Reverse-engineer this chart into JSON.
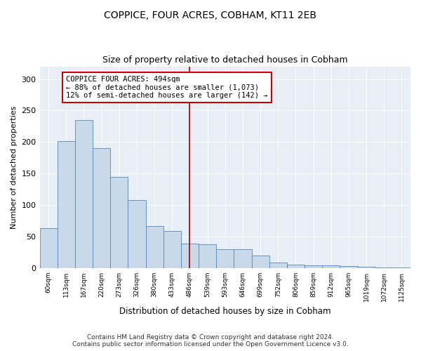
{
  "title": "COPPICE, FOUR ACRES, COBHAM, KT11 2EB",
  "subtitle": "Size of property relative to detached houses in Cobham",
  "xlabel": "Distribution of detached houses by size in Cobham",
  "ylabel": "Number of detached properties",
  "categories": [
    "60sqm",
    "113sqm",
    "167sqm",
    "220sqm",
    "273sqm",
    "326sqm",
    "380sqm",
    "433sqm",
    "486sqm",
    "539sqm",
    "593sqm",
    "646sqm",
    "699sqm",
    "752sqm",
    "806sqm",
    "859sqm",
    "912sqm",
    "965sqm",
    "1019sqm",
    "1072sqm",
    "1125sqm"
  ],
  "values": [
    63,
    201,
    235,
    190,
    144,
    108,
    67,
    59,
    39,
    38,
    30,
    30,
    20,
    9,
    5,
    4,
    4,
    3,
    2,
    1,
    1
  ],
  "bar_color": "#c9d9ea",
  "bar_edge_color": "#5588bb",
  "reference_line_index": 8,
  "reference_line_color": "#990000",
  "annotation_line1": "COPPICE FOUR ACRES: 494sqm",
  "annotation_line2": "← 88% of detached houses are smaller (1,073)",
  "annotation_line3": "12% of semi-detached houses are larger (142) →",
  "annotation_box_color": "#cc0000",
  "annotation_text_color": "black",
  "ylim": [
    0,
    320
  ],
  "yticks": [
    0,
    50,
    100,
    150,
    200,
    250,
    300
  ],
  "footer_line1": "Contains HM Land Registry data © Crown copyright and database right 2024.",
  "footer_line2": "Contains public sector information licensed under the Open Government Licence v3.0.",
  "background_color": "#ffffff",
  "plot_bg_color": "#e8eef5",
  "grid_color": "#ffffff"
}
